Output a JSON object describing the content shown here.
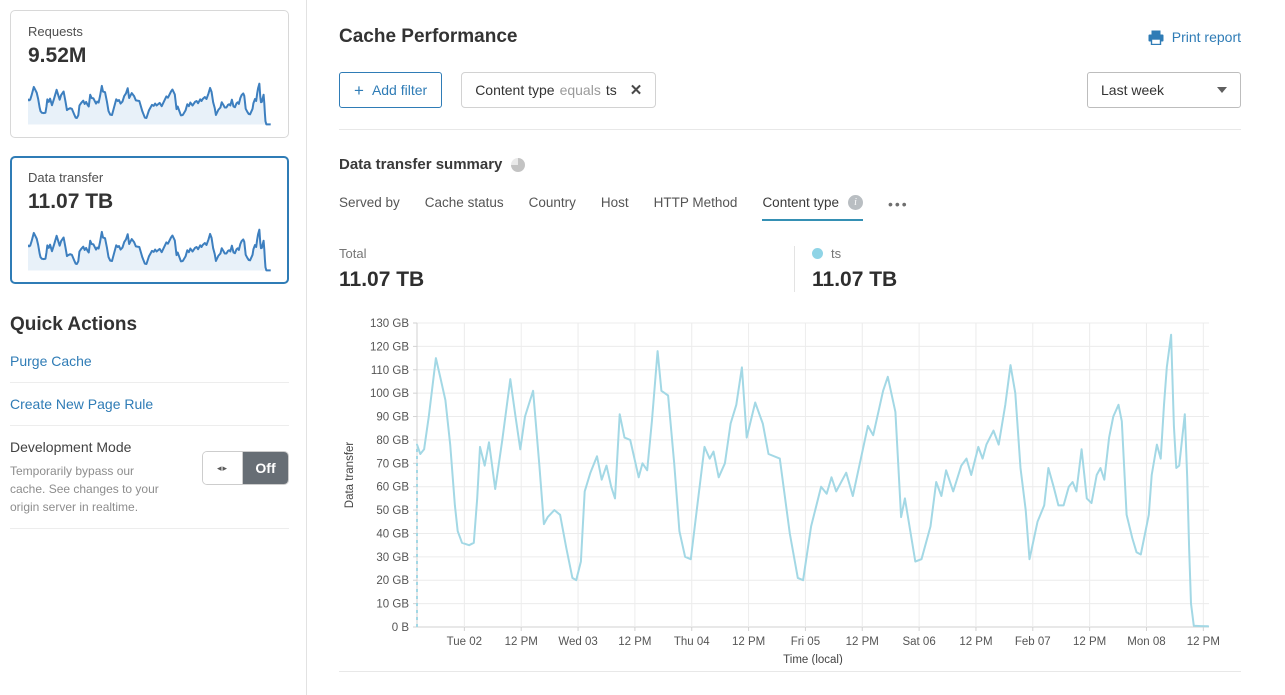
{
  "colors": {
    "accent": "#2f7cb6",
    "chart_line": "#a3d8e5",
    "legend_dot": "#8fd4e6",
    "sparkline": "#3d7fbf",
    "sparkline_fill": "#e8f1f9",
    "grid": "#ececec",
    "axis": "#d2d2d2",
    "toggle_off_bg": "#676e75"
  },
  "sidebar": {
    "requests_card": {
      "label": "Requests",
      "value": "9.52M"
    },
    "data_transfer_card": {
      "label": "Data transfer",
      "value": "11.07 TB"
    },
    "quick_actions": {
      "title": "Quick Actions",
      "purge_cache": "Purge Cache",
      "create_page_rule": "Create New Page Rule",
      "development_mode": {
        "title": "Development Mode",
        "description": "Temporarily bypass our cache. See changes to your origin server in realtime.",
        "toggle_state": "Off",
        "toggle_grip_icon": "◂▸"
      }
    }
  },
  "header": {
    "title": "Cache Performance",
    "print_report": "Print report"
  },
  "filters": {
    "plus": "+",
    "add_filter_label": "Add filter",
    "chip": {
      "field": "Content type",
      "operator": "equals",
      "value": "ts",
      "close": "✕"
    },
    "time_range_selected": "Last week"
  },
  "summary": {
    "title": "Data transfer summary",
    "tabs": [
      "Served by",
      "Cache status",
      "Country",
      "Host",
      "HTTP Method",
      "Content type"
    ],
    "more": "•••",
    "total_label": "Total",
    "total_value": "11.07 TB",
    "series_name": "ts",
    "series_value": "11.07 TB"
  },
  "chart_data": {
    "type": "line",
    "title": "Data transfer summary",
    "xlabel": "Time (local)",
    "ylabel": "Data transfer",
    "unit": "GB",
    "legend": [
      "ts"
    ],
    "grid": true,
    "xlim": [
      0,
      167.2
    ],
    "ylim": [
      0,
      130
    ],
    "x_unit": "hours from Mon Feb 01 ~2 PM",
    "xticks": {
      "hours": [
        10,
        22,
        34,
        46,
        58,
        70,
        82,
        94,
        106,
        118,
        130,
        142,
        154,
        166
      ],
      "labels": [
        "Tue 02",
        "12 PM",
        "Wed 03",
        "12 PM",
        "Thu 04",
        "12 PM",
        "Fri 05",
        "12 PM",
        "Sat 06",
        "12 PM",
        "Feb 07",
        "12 PM",
        "Mon 08",
        "12 PM"
      ]
    },
    "yticks": {
      "values": [
        0,
        10,
        20,
        30,
        40,
        50,
        60,
        70,
        80,
        90,
        100,
        110,
        120,
        130
      ],
      "labels": [
        "0 B",
        "10 GB",
        "20 GB",
        "30 GB",
        "40 GB",
        "50 GB",
        "60 GB",
        "70 GB",
        "80 GB",
        "90 GB",
        "100 GB",
        "110 GB",
        "120 GB",
        "130 GB"
      ]
    },
    "dashed_start": true,
    "series": [
      {
        "name": "ts",
        "total": "11.07 TB",
        "points": [
          [
            0,
            78
          ],
          [
            0.7,
            74
          ],
          [
            1.5,
            76
          ],
          [
            2.5,
            90
          ],
          [
            4,
            115
          ],
          [
            5,
            106
          ],
          [
            6,
            97
          ],
          [
            7,
            78
          ],
          [
            8,
            52
          ],
          [
            8.6,
            41
          ],
          [
            9.5,
            36
          ],
          [
            11,
            35
          ],
          [
            12,
            36
          ],
          [
            12.7,
            55
          ],
          [
            13.3,
            77
          ],
          [
            14.3,
            69
          ],
          [
            15.2,
            79
          ],
          [
            16.5,
            59
          ],
          [
            18,
            80
          ],
          [
            19.7,
            106
          ],
          [
            20.8,
            90
          ],
          [
            21.8,
            76
          ],
          [
            22.8,
            90
          ],
          [
            24.5,
            101
          ],
          [
            25.8,
            70
          ],
          [
            26.8,
            44
          ],
          [
            27.6,
            47
          ],
          [
            29,
            50
          ],
          [
            30.2,
            48
          ],
          [
            31.5,
            34
          ],
          [
            32.8,
            21
          ],
          [
            33.6,
            20
          ],
          [
            34.6,
            28
          ],
          [
            35.4,
            58
          ],
          [
            36.6,
            66
          ],
          [
            38,
            73
          ],
          [
            39,
            63
          ],
          [
            40,
            69
          ],
          [
            41,
            60
          ],
          [
            41.8,
            55
          ],
          [
            42.8,
            91
          ],
          [
            43.8,
            81
          ],
          [
            45,
            80
          ],
          [
            46.8,
            64
          ],
          [
            47.6,
            70
          ],
          [
            48.6,
            67
          ],
          [
            49.6,
            88
          ],
          [
            50.8,
            118
          ],
          [
            51.6,
            101
          ],
          [
            53,
            99
          ],
          [
            54.3,
            70
          ],
          [
            55.4,
            41
          ],
          [
            56.6,
            30
          ],
          [
            57.8,
            29
          ],
          [
            59.3,
            54
          ],
          [
            60.7,
            77
          ],
          [
            61.8,
            72
          ],
          [
            62.6,
            75
          ],
          [
            63.7,
            64
          ],
          [
            65,
            70
          ],
          [
            66.2,
            87
          ],
          [
            67.4,
            95
          ],
          [
            68.6,
            111
          ],
          [
            69.6,
            81
          ],
          [
            71.4,
            96
          ],
          [
            73,
            87
          ],
          [
            74.2,
            74
          ],
          [
            76.6,
            72
          ],
          [
            78.7,
            40
          ],
          [
            80.4,
            21
          ],
          [
            81.5,
            20
          ],
          [
            83.2,
            43
          ],
          [
            85.3,
            60
          ],
          [
            86.5,
            57
          ],
          [
            87.5,
            64
          ],
          [
            88.5,
            58
          ],
          [
            90.6,
            66
          ],
          [
            92,
            56
          ],
          [
            95.2,
            86
          ],
          [
            96.3,
            82
          ],
          [
            98.4,
            101
          ],
          [
            99.4,
            107
          ],
          [
            101,
            92
          ],
          [
            102.2,
            47
          ],
          [
            103,
            55
          ],
          [
            105.2,
            28
          ],
          [
            106.5,
            29
          ],
          [
            108.4,
            43
          ],
          [
            109.6,
            62
          ],
          [
            110.7,
            56
          ],
          [
            111.7,
            67
          ],
          [
            113.2,
            58
          ],
          [
            114.9,
            69
          ],
          [
            116,
            72
          ],
          [
            117,
            65
          ],
          [
            118.5,
            77
          ],
          [
            119.4,
            72
          ],
          [
            120.2,
            78
          ],
          [
            121.7,
            84
          ],
          [
            122.8,
            78
          ],
          [
            124.2,
            95
          ],
          [
            125.3,
            112
          ],
          [
            126.3,
            100
          ],
          [
            127.4,
            68
          ],
          [
            128.5,
            50
          ],
          [
            129.3,
            29
          ],
          [
            131,
            45
          ],
          [
            132.4,
            52
          ],
          [
            133.3,
            68
          ],
          [
            134.4,
            60
          ],
          [
            135.4,
            52
          ],
          [
            136.5,
            52
          ],
          [
            137.6,
            60
          ],
          [
            138.4,
            62
          ],
          [
            139.2,
            58
          ],
          [
            140.3,
            76
          ],
          [
            141.4,
            55
          ],
          [
            142.4,
            53
          ],
          [
            143.5,
            65
          ],
          [
            144.3,
            68
          ],
          [
            145.1,
            63
          ],
          [
            146.1,
            81
          ],
          [
            147,
            90
          ],
          [
            148.1,
            95
          ],
          [
            148.8,
            88
          ],
          [
            149.8,
            48
          ],
          [
            151,
            38
          ],
          [
            151.9,
            32
          ],
          [
            152.8,
            31
          ],
          [
            154.5,
            48
          ],
          [
            155.1,
            65
          ],
          [
            156.2,
            78
          ],
          [
            157,
            72
          ],
          [
            157.7,
            95
          ],
          [
            158.3,
            111
          ],
          [
            159.2,
            125
          ],
          [
            159.8,
            86
          ],
          [
            160.3,
            68
          ],
          [
            160.9,
            69
          ],
          [
            162.1,
            91
          ],
          [
            162.6,
            64
          ],
          [
            163,
            34
          ],
          [
            163.4,
            10
          ],
          [
            164,
            0.5
          ],
          [
            165.5,
            0.4
          ],
          [
            167,
            0.3
          ]
        ]
      }
    ]
  }
}
